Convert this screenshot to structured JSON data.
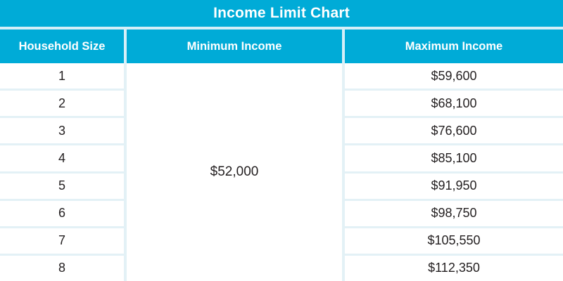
{
  "chart_data": {
    "type": "table",
    "title": "Income Limit Chart",
    "columns": [
      "Household Size",
      "Minimum Income",
      "Maximum Income"
    ],
    "minimum_income_merged": "$52,000",
    "rows": [
      {
        "household_size": "1",
        "maximum_income": "$59,600"
      },
      {
        "household_size": "2",
        "maximum_income": "$68,100"
      },
      {
        "household_size": "3",
        "maximum_income": "$76,600"
      },
      {
        "household_size": "4",
        "maximum_income": "$85,100"
      },
      {
        "household_size": "5",
        "maximum_income": "$91,950"
      },
      {
        "household_size": "6",
        "maximum_income": "$98,750"
      },
      {
        "household_size": "7",
        "maximum_income": "$105,550"
      },
      {
        "household_size": "8",
        "maximum_income": "$112,350"
      }
    ],
    "layout": {
      "merged_column": "Minimum Income",
      "grid": "row separators only in Household Size and Maximum Income columns"
    }
  },
  "colors": {
    "accent": "#00ABD7",
    "header_gap": "#D6EFF8",
    "row_separator": "#E3F1F6",
    "text": "#231F20",
    "cell_bg": "#FFFFFF"
  }
}
